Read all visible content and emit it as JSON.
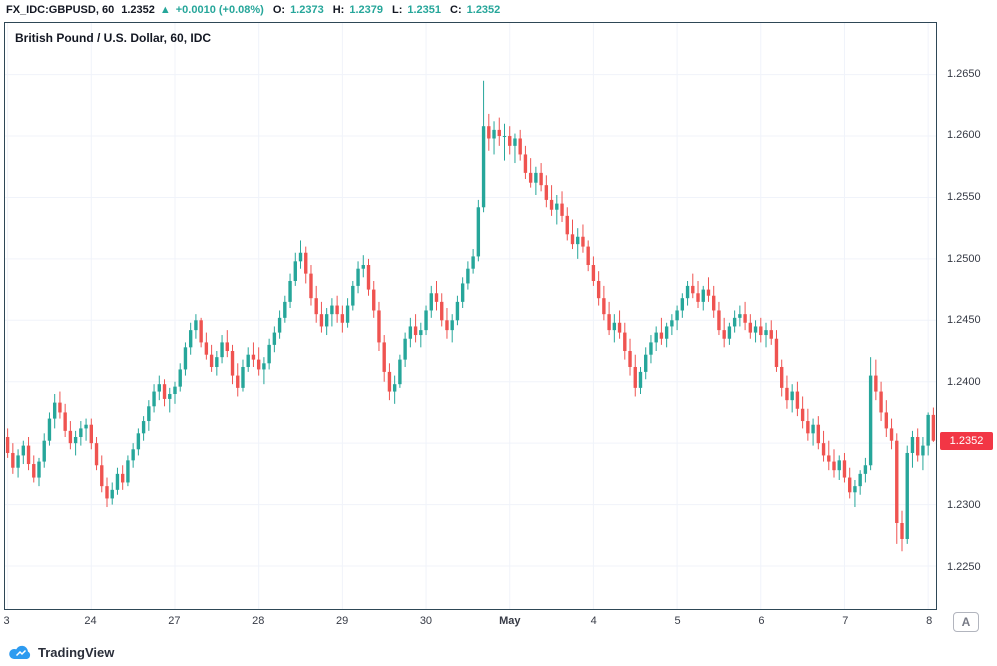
{
  "topbar": {
    "symbol": "FX_IDC:GBPUSD, 60",
    "last": "1.2352",
    "arrow": "▲",
    "change": "+0.0010 (+0.08%)",
    "ohlc": [
      {
        "label": "O:",
        "value": "1.2373"
      },
      {
        "label": "H:",
        "value": "1.2379"
      },
      {
        "label": "L:",
        "value": "1.2351"
      },
      {
        "label": "C:",
        "value": "1.2352"
      }
    ]
  },
  "chart": {
    "title": "British Pound / U.S. Dollar, 60, IDC"
  },
  "price_scale": {
    "last": "1.2352"
  },
  "footer": {
    "brand": "TradingView",
    "autoscale": "A"
  },
  "colors": {
    "up": "#26a69a",
    "down": "#ef5350",
    "grid": "#f0f3fa",
    "border": "#2e4756",
    "tag": "#f23645",
    "accent_teal": "#26a69a",
    "logo_blue": "#2d9bf0"
  },
  "chart_data": {
    "type": "candlestick",
    "title": "British Pound / U.S. Dollar, 60, IDC",
    "symbol": "FX_IDC:GBPUSD",
    "interval": "60",
    "legend_position": "none",
    "grid": true,
    "last_close": 1.2352,
    "y_axis": {
      "min": 1.2215,
      "max": 1.2692,
      "ticks": [
        1.265,
        1.26,
        1.255,
        1.25,
        1.245,
        1.24,
        1.235,
        1.23,
        1.225
      ]
    },
    "x_ticks": [
      {
        "index": 0,
        "label": "3",
        "bold": false
      },
      {
        "index": 16,
        "label": "24",
        "bold": false
      },
      {
        "index": 32,
        "label": "27",
        "bold": false
      },
      {
        "index": 48,
        "label": "28",
        "bold": false
      },
      {
        "index": 64,
        "label": "29",
        "bold": false
      },
      {
        "index": 80,
        "label": "30",
        "bold": false
      },
      {
        "index": 96,
        "label": "May",
        "bold": true
      },
      {
        "index": 112,
        "label": "4",
        "bold": false
      },
      {
        "index": 128,
        "label": "5",
        "bold": false
      },
      {
        "index": 144,
        "label": "6",
        "bold": false
      },
      {
        "index": 160,
        "label": "7",
        "bold": false
      },
      {
        "index": 176,
        "label": "8",
        "bold": false
      }
    ],
    "candles": [
      [
        1.2355,
        1.2362,
        1.2338,
        1.2342
      ],
      [
        1.2342,
        1.235,
        1.2325,
        1.233
      ],
      [
        1.233,
        1.2345,
        1.2322,
        1.234
      ],
      [
        1.234,
        1.2352,
        1.2333,
        1.2348
      ],
      [
        1.2348,
        1.2355,
        1.2328,
        1.2333
      ],
      [
        1.2333,
        1.234,
        1.2318,
        1.2322
      ],
      [
        1.2322,
        1.2338,
        1.2315,
        1.2335
      ],
      [
        1.2335,
        1.2358,
        1.233,
        1.2352
      ],
      [
        1.2352,
        1.2375,
        1.2348,
        1.237
      ],
      [
        1.237,
        1.239,
        1.2362,
        1.2383
      ],
      [
        1.2383,
        1.2392,
        1.237,
        1.2375
      ],
      [
        1.2375,
        1.2382,
        1.2355,
        1.236
      ],
      [
        1.236,
        1.2368,
        1.2345,
        1.235
      ],
      [
        1.235,
        1.236,
        1.234,
        1.2355
      ],
      [
        1.2355,
        1.2368,
        1.2348,
        1.2362
      ],
      [
        1.2362,
        1.237,
        1.2352,
        1.2365
      ],
      [
        1.2365,
        1.237,
        1.2345,
        1.235
      ],
      [
        1.235,
        1.2355,
        1.2328,
        1.2332
      ],
      [
        1.2332,
        1.234,
        1.231,
        1.2315
      ],
      [
        1.2315,
        1.2322,
        1.2298,
        1.2305
      ],
      [
        1.2305,
        1.2318,
        1.23,
        1.2312
      ],
      [
        1.2312,
        1.233,
        1.2308,
        1.2325
      ],
      [
        1.2325,
        1.2332,
        1.2312,
        1.2318
      ],
      [
        1.2318,
        1.234,
        1.2315,
        1.2336
      ],
      [
        1.2336,
        1.235,
        1.233,
        1.2345
      ],
      [
        1.2345,
        1.2362,
        1.234,
        1.2358
      ],
      [
        1.2358,
        1.2372,
        1.2352,
        1.2368
      ],
      [
        1.2368,
        1.2385,
        1.236,
        1.238
      ],
      [
        1.238,
        1.2398,
        1.2375,
        1.2392
      ],
      [
        1.2392,
        1.2405,
        1.2385,
        1.2398
      ],
      [
        1.2398,
        1.2402,
        1.238,
        1.2386
      ],
      [
        1.2386,
        1.2395,
        1.2375,
        1.239
      ],
      [
        1.239,
        1.24,
        1.2382,
        1.2396
      ],
      [
        1.2396,
        1.2415,
        1.2392,
        1.241
      ],
      [
        1.241,
        1.2432,
        1.2405,
        1.2428
      ],
      [
        1.2428,
        1.2448,
        1.2422,
        1.2442
      ],
      [
        1.2442,
        1.2455,
        1.2435,
        1.245
      ],
      [
        1.245,
        1.2452,
        1.2428,
        1.2432
      ],
      [
        1.2432,
        1.244,
        1.2418,
        1.2422
      ],
      [
        1.2422,
        1.243,
        1.2408,
        1.2412
      ],
      [
        1.2412,
        1.2425,
        1.2405,
        1.242
      ],
      [
        1.242,
        1.2438,
        1.2415,
        1.2432
      ],
      [
        1.2432,
        1.2442,
        1.242,
        1.2425
      ],
      [
        1.2425,
        1.243,
        1.2398,
        1.2405
      ],
      [
        1.2405,
        1.2415,
        1.2388,
        1.2395
      ],
      [
        1.2395,
        1.2418,
        1.2392,
        1.2412
      ],
      [
        1.2412,
        1.2428,
        1.2408,
        1.2422
      ],
      [
        1.2422,
        1.2432,
        1.2412,
        1.2418
      ],
      [
        1.2418,
        1.2428,
        1.2405,
        1.241
      ],
      [
        1.241,
        1.242,
        1.2398,
        1.2415
      ],
      [
        1.2415,
        1.2435,
        1.241,
        1.243
      ],
      [
        1.243,
        1.2445,
        1.2424,
        1.244
      ],
      [
        1.244,
        1.2458,
        1.2435,
        1.2452
      ],
      [
        1.2452,
        1.247,
        1.2448,
        1.2465
      ],
      [
        1.2465,
        1.2488,
        1.246,
        1.2482
      ],
      [
        1.2482,
        1.2505,
        1.2478,
        1.2498
      ],
      [
        1.2498,
        1.2515,
        1.2492,
        1.2505
      ],
      [
        1.2505,
        1.251,
        1.248,
        1.2488
      ],
      [
        1.2488,
        1.2495,
        1.2462,
        1.2468
      ],
      [
        1.2468,
        1.2478,
        1.2448,
        1.2455
      ],
      [
        1.2455,
        1.2465,
        1.244,
        1.2445
      ],
      [
        1.2445,
        1.246,
        1.2438,
        1.2455
      ],
      [
        1.2455,
        1.2468,
        1.2445,
        1.2462
      ],
      [
        1.2462,
        1.247,
        1.2448,
        1.2455
      ],
      [
        1.2455,
        1.2462,
        1.244,
        1.2448
      ],
      [
        1.2448,
        1.2468,
        1.2444,
        1.2462
      ],
      [
        1.2462,
        1.2482,
        1.2458,
        1.2478
      ],
      [
        1.2478,
        1.2498,
        1.2472,
        1.2492
      ],
      [
        1.2492,
        1.2503,
        1.2485,
        1.2495
      ],
      [
        1.2495,
        1.25,
        1.247,
        1.2475
      ],
      [
        1.2475,
        1.2482,
        1.2452,
        1.2458
      ],
      [
        1.2458,
        1.2465,
        1.2425,
        1.2432
      ],
      [
        1.2432,
        1.2438,
        1.24,
        1.2408
      ],
      [
        1.2408,
        1.2415,
        1.2385,
        1.2392
      ],
      [
        1.2392,
        1.2405,
        1.2382,
        1.2398
      ],
      [
        1.2398,
        1.2422,
        1.2395,
        1.2418
      ],
      [
        1.2418,
        1.244,
        1.2412,
        1.2435
      ],
      [
        1.2435,
        1.2452,
        1.2428,
        1.2445
      ],
      [
        1.2445,
        1.2455,
        1.2432,
        1.2438
      ],
      [
        1.2438,
        1.2448,
        1.2428,
        1.2442
      ],
      [
        1.2442,
        1.2462,
        1.2438,
        1.2458
      ],
      [
        1.2458,
        1.2478,
        1.2452,
        1.2472
      ],
      [
        1.2472,
        1.2482,
        1.2458,
        1.2465
      ],
      [
        1.2465,
        1.2472,
        1.2445,
        1.245
      ],
      [
        1.245,
        1.246,
        1.2435,
        1.2442
      ],
      [
        1.2442,
        1.2455,
        1.2432,
        1.245
      ],
      [
        1.245,
        1.247,
        1.2446,
        1.2465
      ],
      [
        1.2465,
        1.2485,
        1.246,
        1.248
      ],
      [
        1.248,
        1.2498,
        1.2475,
        1.2492
      ],
      [
        1.2492,
        1.2508,
        1.2488,
        1.2502
      ],
      [
        1.2502,
        1.2548,
        1.2498,
        1.2542
      ],
      [
        1.2542,
        1.2645,
        1.2538,
        1.2608
      ],
      [
        1.2608,
        1.2618,
        1.2588,
        1.2598
      ],
      [
        1.2598,
        1.2612,
        1.2585,
        1.2605
      ],
      [
        1.2605,
        1.2615,
        1.2592,
        1.26
      ],
      [
        1.26,
        1.261,
        1.258,
        1.26
      ],
      [
        1.26,
        1.2608,
        1.2585,
        1.2592
      ],
      [
        1.2592,
        1.2602,
        1.2578,
        1.2598
      ],
      [
        1.2598,
        1.2605,
        1.258,
        1.2585
      ],
      [
        1.2585,
        1.2592,
        1.2565,
        1.257
      ],
      [
        1.257,
        1.2582,
        1.2558,
        1.2562
      ],
      [
        1.2562,
        1.2575,
        1.2552,
        1.257
      ],
      [
        1.257,
        1.2578,
        1.2555,
        1.256
      ],
      [
        1.256,
        1.2568,
        1.2542,
        1.2548
      ],
      [
        1.2548,
        1.256,
        1.2535,
        1.254
      ],
      [
        1.254,
        1.2552,
        1.2528,
        1.2545
      ],
      [
        1.2545,
        1.2555,
        1.253,
        1.2535
      ],
      [
        1.2535,
        1.2542,
        1.2515,
        1.252
      ],
      [
        1.252,
        1.2532,
        1.2508,
        1.2512
      ],
      [
        1.2512,
        1.2525,
        1.25,
        1.2518
      ],
      [
        1.2518,
        1.2528,
        1.2505,
        1.251
      ],
      [
        1.251,
        1.2515,
        1.249,
        1.2495
      ],
      [
        1.2495,
        1.2502,
        1.2478,
        1.2482
      ],
      [
        1.2482,
        1.249,
        1.2462,
        1.2468
      ],
      [
        1.2468,
        1.2478,
        1.245,
        1.2455
      ],
      [
        1.2455,
        1.2465,
        1.2438,
        1.2442
      ],
      [
        1.2442,
        1.2455,
        1.2432,
        1.2448
      ],
      [
        1.2448,
        1.2458,
        1.2435,
        1.244
      ],
      [
        1.244,
        1.2448,
        1.2418,
        1.2425
      ],
      [
        1.2425,
        1.2435,
        1.2405,
        1.2412
      ],
      [
        1.2412,
        1.2422,
        1.2388,
        1.2395
      ],
      [
        1.2395,
        1.2412,
        1.239,
        1.2408
      ],
      [
        1.2408,
        1.2428,
        1.2402,
        1.2422
      ],
      [
        1.2422,
        1.2438,
        1.2415,
        1.2432
      ],
      [
        1.2432,
        1.2445,
        1.2425,
        1.244
      ],
      [
        1.244,
        1.2452,
        1.243,
        1.2435
      ],
      [
        1.2435,
        1.2448,
        1.2428,
        1.2445
      ],
      [
        1.2445,
        1.2455,
        1.2438,
        1.245
      ],
      [
        1.245,
        1.2462,
        1.2442,
        1.2458
      ],
      [
        1.2458,
        1.2472,
        1.2452,
        1.2468
      ],
      [
        1.2468,
        1.2482,
        1.2462,
        1.2478
      ],
      [
        1.2478,
        1.2488,
        1.2468,
        1.2472
      ],
      [
        1.2472,
        1.2482,
        1.246,
        1.2465
      ],
      [
        1.2465,
        1.2478,
        1.2458,
        1.2475
      ],
      [
        1.2475,
        1.2485,
        1.2465,
        1.247
      ],
      [
        1.247,
        1.2478,
        1.2452,
        1.2458
      ],
      [
        1.2458,
        1.2465,
        1.2438,
        1.2442
      ],
      [
        1.2442,
        1.2452,
        1.2428,
        1.2435
      ],
      [
        1.2435,
        1.2448,
        1.243,
        1.2445
      ],
      [
        1.2445,
        1.2458,
        1.244,
        1.2452
      ],
      [
        1.2452,
        1.2462,
        1.2445,
        1.2455
      ],
      [
        1.2455,
        1.2465,
        1.2442,
        1.2448
      ],
      [
        1.2448,
        1.2455,
        1.2435,
        1.244
      ],
      [
        1.244,
        1.245,
        1.2432,
        1.2445
      ],
      [
        1.2445,
        1.2452,
        1.2432,
        1.2438
      ],
      [
        1.2438,
        1.2448,
        1.2428,
        1.2442
      ],
      [
        1.2442,
        1.245,
        1.243,
        1.2435
      ],
      [
        1.2435,
        1.2442,
        1.2408,
        1.2412
      ],
      [
        1.2412,
        1.2418,
        1.2388,
        1.2395
      ],
      [
        1.2395,
        1.2405,
        1.2378,
        1.2385
      ],
      [
        1.2385,
        1.2398,
        1.2375,
        1.2392
      ],
      [
        1.2392,
        1.24,
        1.2372,
        1.2378
      ],
      [
        1.2378,
        1.2388,
        1.2362,
        1.2368
      ],
      [
        1.2368,
        1.2378,
        1.2352,
        1.2358
      ],
      [
        1.2358,
        1.237,
        1.2348,
        1.2365
      ],
      [
        1.2365,
        1.2372,
        1.2345,
        1.235
      ],
      [
        1.235,
        1.236,
        1.2335,
        1.234
      ],
      [
        1.234,
        1.2352,
        1.2328,
        1.2335
      ],
      [
        1.2335,
        1.2345,
        1.2322,
        1.2328
      ],
      [
        1.2328,
        1.234,
        1.232,
        1.2336
      ],
      [
        1.2336,
        1.2342,
        1.2318,
        1.2322
      ],
      [
        1.2322,
        1.233,
        1.2305,
        1.231
      ],
      [
        1.231,
        1.232,
        1.2298,
        1.2315
      ],
      [
        1.2315,
        1.2328,
        1.2308,
        1.2325
      ],
      [
        1.2325,
        1.2338,
        1.2318,
        1.2332
      ],
      [
        1.2332,
        1.242,
        1.2328,
        1.2405
      ],
      [
        1.2405,
        1.2418,
        1.2385,
        1.2392
      ],
      [
        1.2392,
        1.24,
        1.2368,
        1.2375
      ],
      [
        1.2375,
        1.2385,
        1.2355,
        1.2362
      ],
      [
        1.2362,
        1.237,
        1.2345,
        1.2352
      ],
      [
        1.2352,
        1.2358,
        1.2268,
        1.2285
      ],
      [
        1.2285,
        1.2295,
        1.2262,
        1.2272
      ],
      [
        1.2272,
        1.2348,
        1.2268,
        1.2342
      ],
      [
        1.2342,
        1.236,
        1.233,
        1.2355
      ],
      [
        1.2355,
        1.2362,
        1.2335,
        1.234
      ],
      [
        1.234,
        1.2355,
        1.2328,
        1.2348
      ],
      [
        1.2348,
        1.2375,
        1.234,
        1.2373
      ],
      [
        1.2373,
        1.2379,
        1.2351,
        1.2352
      ]
    ]
  }
}
